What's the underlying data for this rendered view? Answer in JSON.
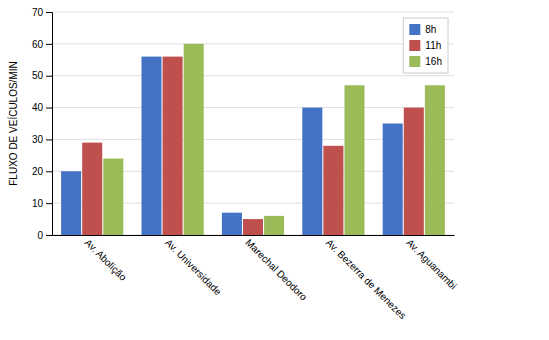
{
  "chart_data": {
    "type": "bar",
    "ylabel": "FLUXO DE VEÍCULOS/MIN",
    "categories": [
      "Av. Abolição",
      "Av. Universidade",
      "Marechal Deodoro",
      "Av. Bezerra de Menezes",
      "Av. Aguanambi"
    ],
    "series": [
      {
        "name": "8h",
        "color": "#4472C4",
        "values": [
          20,
          56,
          7,
          40,
          35
        ]
      },
      {
        "name": "11h",
        "color": "#C0504D",
        "values": [
          29,
          56,
          5,
          28,
          40
        ]
      },
      {
        "name": "16h",
        "color": "#9BBB59",
        "values": [
          24,
          60,
          6,
          47,
          47
        ]
      }
    ],
    "ylim": [
      0,
      70
    ],
    "yticks": [
      0,
      10,
      20,
      30,
      40,
      50,
      60,
      70
    ],
    "grid": true,
    "legend": "upper-right"
  }
}
